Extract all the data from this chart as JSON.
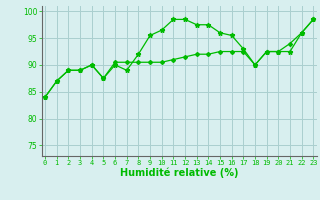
{
  "x": [
    0,
    1,
    2,
    3,
    4,
    5,
    6,
    7,
    8,
    9,
    10,
    11,
    12,
    13,
    14,
    15,
    16,
    17,
    18,
    19,
    20,
    21,
    22,
    23
  ],
  "line1": [
    84,
    87,
    89,
    89,
    90,
    87.5,
    90,
    89,
    92,
    95.5,
    96.5,
    98.5,
    98.5,
    97.5,
    97.5,
    96,
    95.5,
    93,
    90,
    92.5,
    92.5,
    92.5,
    96,
    98.5
  ],
  "line2": [
    84,
    87,
    89,
    89,
    90,
    87.5,
    90.5,
    90.5,
    90.5,
    90.5,
    90.5,
    91,
    91.5,
    92,
    92,
    92.5,
    92.5,
    92.5,
    90,
    92.5,
    92.5,
    94,
    96,
    98.5
  ],
  "line_color": "#00bb00",
  "bg_color": "#d8efef",
  "grid_color": "#aacfcf",
  "xlabel": "Humidité relative (%)",
  "ylim": [
    73,
    101
  ],
  "xlim": [
    -0.3,
    23.3
  ],
  "yticks": [
    75,
    80,
    85,
    90,
    95,
    100
  ],
  "xticks": [
    0,
    1,
    2,
    3,
    4,
    5,
    6,
    7,
    8,
    9,
    10,
    11,
    12,
    13,
    14,
    15,
    16,
    17,
    18,
    19,
    20,
    21,
    22,
    23
  ]
}
